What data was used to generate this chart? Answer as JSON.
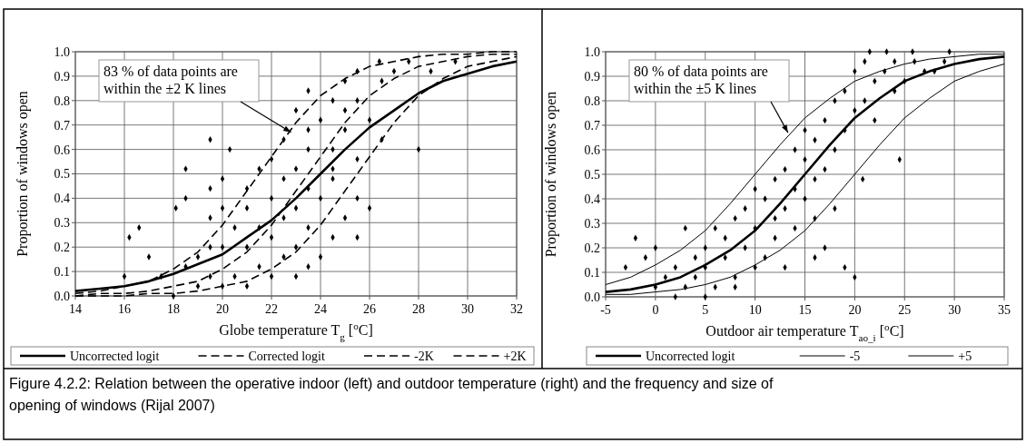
{
  "chart_data": [
    {
      "type": "line",
      "xlabel": "Globe temperature T$_{g}$ [$^{o}$C]",
      "ylabel": "Proportion of windows open",
      "xlim": [
        14,
        32
      ],
      "xticks": [
        14,
        16,
        18,
        20,
        22,
        24,
        26,
        28,
        30,
        32
      ],
      "ylim": [
        0,
        1
      ],
      "yticks": [
        {
          "value": 0,
          "label": "0.0"
        },
        {
          "value": 0.1,
          "label": "0.1"
        },
        {
          "value": 0.2,
          "label": "0.2"
        },
        {
          "value": 0.3,
          "label": "0.3"
        },
        {
          "value": 0.4,
          "label": "0.4"
        },
        {
          "value": 0.5,
          "label": "0.5"
        },
        {
          "value": 0.6,
          "label": "0.6"
        },
        {
          "value": 0.7,
          "label": "0.7"
        },
        {
          "value": 0.8,
          "label": "0.8"
        },
        {
          "value": 0.9,
          "label": "0.9"
        },
        {
          "value": 1,
          "label": "1.0"
        }
      ],
      "grid": true,
      "legend": "bottom",
      "annotations": [
        {
          "text": "83 % of data points are within the ±2 K lines",
          "x": 22.8,
          "y": 0.67
        },
        "Figure 4.2.2: Relation between the operative indoor (left) and outdoor temperature (right) and the frequency and size of opening of windows (Rijal 2007)"
      ],
      "series": [
        {
          "type": "scatter",
          "color": "#000000",
          "marker": "diamond",
          "x": [
            18,
            19,
            19.5,
            20,
            20.5,
            21,
            21.5,
            22,
            22.5,
            23,
            23.5,
            24,
            18.5,
            17.5,
            16,
            19,
            19.5,
            20,
            21,
            22,
            23,
            24.5,
            25.5,
            20.5,
            21.5,
            22.5,
            23.5,
            25,
            26,
            19.5,
            20,
            21,
            22,
            23,
            24,
            25.5,
            18.5,
            19.5,
            21,
            22.5,
            23.5,
            24.5,
            20,
            21.5,
            23,
            24.5,
            25.5,
            22,
            23.5,
            24.5,
            28,
            22.5,
            23.5,
            25,
            26.5,
            24,
            25,
            23,
            24.5,
            25.5,
            23.5,
            25,
            26.5,
            25.5,
            26.4,
            27.6,
            27,
            28.5,
            29.5,
            16.2,
            16.6,
            18.1,
            18.5,
            19.5,
            20.3,
            17,
            26
          ],
          "values": [
            0,
            0.04,
            0.08,
            0.04,
            0.08,
            0.04,
            0.12,
            0.08,
            0.16,
            0.08,
            0.12,
            0.16,
            0.12,
            0.08,
            0.08,
            0.16,
            0.2,
            0.2,
            0.2,
            0.24,
            0.2,
            0.24,
            0.24,
            0.28,
            0.28,
            0.32,
            0.28,
            0.32,
            0.36,
            0.32,
            0.36,
            0.36,
            0.4,
            0.36,
            0.4,
            0.4,
            0.4,
            0.44,
            0.44,
            0.48,
            0.44,
            0.48,
            0.48,
            0.52,
            0.52,
            0.52,
            0.56,
            0.56,
            0.6,
            0.6,
            0.6,
            0.64,
            0.68,
            0.68,
            0.64,
            0.72,
            0.76,
            0.76,
            0.8,
            0.8,
            0.84,
            0.88,
            0.88,
            0.92,
            0.96,
            0.96,
            0.92,
            0.92,
            0.96,
            0.24,
            0.28,
            0.36,
            0.52,
            0.64,
            0.6,
            0.16,
            0.72
          ]
        },
        {
          "name": "Uncorrected logit",
          "color": "#000000",
          "line_style": "solid",
          "x": [
            14,
            15,
            16,
            17,
            18,
            19,
            20,
            21,
            22,
            23,
            24,
            25,
            26,
            27,
            28,
            29,
            30,
            31,
            32
          ],
          "values": [
            0.02,
            0.03,
            0.04,
            0.06,
            0.09,
            0.13,
            0.17,
            0.24,
            0.31,
            0.4,
            0.5,
            0.6,
            0.69,
            0.76,
            0.83,
            0.88,
            0.91,
            0.94,
            0.96
          ]
        },
        {
          "name": "Corrected logit",
          "color": "#000000",
          "line_style": "dashed",
          "x": [
            14,
            15,
            16,
            17,
            18,
            19,
            20,
            21,
            22,
            23,
            24,
            25,
            26,
            27,
            28,
            29,
            30,
            31,
            32
          ],
          "values": [
            0,
            0.01,
            0.01,
            0.02,
            0.04,
            0.06,
            0.11,
            0.18,
            0.29,
            0.43,
            0.57,
            0.71,
            0.82,
            0.89,
            0.94,
            0.96,
            0.98,
            0.99,
            0.99
          ]
        },
        {
          "name": "-2K",
          "color": "#000000",
          "line_style": "dashed",
          "x": [
            14,
            15,
            16,
            17,
            18,
            19,
            20,
            21,
            22,
            23,
            24,
            25,
            26,
            27,
            28,
            29,
            30,
            31,
            32
          ],
          "values": [
            0.01,
            0.02,
            0.04,
            0.06,
            0.11,
            0.18,
            0.29,
            0.43,
            0.57,
            0.71,
            0.82,
            0.89,
            0.94,
            0.96,
            0.98,
            0.99,
            0.99,
            1,
            1
          ]
        },
        {
          "name": "+2K",
          "color": "#000000",
          "line_style": "dashed",
          "x": [
            14,
            15,
            16,
            17,
            18,
            19,
            20,
            21,
            22,
            23,
            24,
            25,
            26,
            27,
            28,
            29,
            30,
            31,
            32
          ],
          "values": [
            0,
            0,
            0,
            0.01,
            0.01,
            0.02,
            0.04,
            0.06,
            0.11,
            0.18,
            0.29,
            0.43,
            0.57,
            0.71,
            0.82,
            0.89,
            0.94,
            0.96,
            0.98
          ]
        }
      ]
    },
    {
      "type": "line",
      "xlabel": "Outdoor air temperature T$_{ao_i}$ [$^{o}$C]",
      "ylabel": "Proportion of windows open",
      "xlim": [
        -5,
        35
      ],
      "xticks": [
        -5,
        0,
        5,
        10,
        15,
        20,
        25,
        30,
        35
      ],
      "ylim": [
        0,
        1
      ],
      "yticks": [
        {
          "value": 0,
          "label": "0.0"
        },
        {
          "value": 0.1,
          "label": "0.1"
        },
        {
          "value": 0.2,
          "label": "0.2"
        },
        {
          "value": 0.3,
          "label": "0.3"
        },
        {
          "value": 0.4,
          "label": "0.4"
        },
        {
          "value": 0.5,
          "label": "0.5"
        },
        {
          "value": 0.6,
          "label": "0.6"
        },
        {
          "value": 0.7,
          "label": "0.7"
        },
        {
          "value": 0.8,
          "label": "0.8"
        },
        {
          "value": 0.9,
          "label": "0.9"
        },
        {
          "value": 1,
          "label": "1.0"
        }
      ],
      "grid": true,
      "legend": "bottom",
      "annotations": [
        {
          "text": "80 % of data points are within the ±5 K lines",
          "x": 13.3,
          "y": 0.67
        }
      ],
      "series": [
        {
          "type": "scatter",
          "color": "#000000",
          "marker": "diamond",
          "x": [
            -3,
            -2,
            -1,
            0,
            0,
            1,
            2,
            2,
            3,
            3,
            4,
            4,
            5,
            5,
            5,
            6,
            6,
            7,
            7,
            8,
            8,
            9,
            9,
            10,
            10,
            10,
            11,
            11,
            12,
            12,
            12,
            13,
            13,
            14,
            14,
            14,
            15,
            15,
            15,
            16,
            16,
            16,
            17,
            17,
            17,
            18,
            18,
            18,
            19,
            19,
            19,
            20,
            20,
            20,
            21,
            21,
            21.5,
            22,
            22,
            23,
            23.2,
            24,
            24,
            24.5,
            25,
            25.8,
            26,
            27,
            28,
            29,
            29.5,
            20.8,
            13,
            8,
            16
          ],
          "values": [
            0.12,
            0.24,
            0.16,
            0.2,
            0.04,
            0.08,
            0,
            0.12,
            0.28,
            0.04,
            0.16,
            0.08,
            0.2,
            0.12,
            0,
            0.28,
            0.04,
            0.24,
            0.16,
            0.32,
            0.08,
            0.36,
            0.2,
            0.28,
            0.12,
            0.44,
            0.4,
            0.16,
            0.32,
            0.48,
            0.24,
            0.36,
            0.52,
            0.44,
            0.6,
            0.28,
            0.4,
            0.56,
            0.68,
            0.48,
            0.64,
            0.32,
            0.52,
            0.72,
            0.2,
            0.6,
            0.8,
            0.36,
            0.68,
            0.84,
            0.12,
            0.76,
            0.92,
            0.08,
            0.8,
            0.96,
            1,
            0.88,
            0.72,
            0.92,
            1,
            0.96,
            0.84,
            0.56,
            0.88,
            1,
            0.96,
            0.92,
            0.92,
            0.96,
            1,
            0.48,
            0.12,
            0.04,
            0.16
          ]
        },
        {
          "name": "Uncorrected logit",
          "color": "#000000",
          "line_style": "solid",
          "x": [
            -5,
            -2.5,
            0,
            2.5,
            5,
            7.5,
            10,
            12.5,
            15,
            17.5,
            20,
            22.5,
            25,
            27.5,
            30,
            32.5,
            35
          ],
          "values": [
            0.02,
            0.03,
            0.05,
            0.08,
            0.13,
            0.19,
            0.27,
            0.38,
            0.5,
            0.62,
            0.73,
            0.81,
            0.88,
            0.92,
            0.95,
            0.97,
            0.98
          ]
        },
        {
          "name": "-5",
          "color": "#000000",
          "line_style": "solid",
          "x": [
            -5,
            -2.5,
            0,
            2.5,
            5,
            7.5,
            10,
            12.5,
            15,
            17.5,
            20,
            22.5,
            25,
            27.5,
            30,
            32.5,
            35
          ],
          "values": [
            0.05,
            0.08,
            0.13,
            0.19,
            0.27,
            0.38,
            0.5,
            0.62,
            0.73,
            0.81,
            0.88,
            0.92,
            0.95,
            0.97,
            0.98,
            0.99,
            0.99
          ]
        },
        {
          "name": "+5",
          "color": "#000000",
          "line_style": "solid",
          "x": [
            -5,
            -2.5,
            0,
            2.5,
            5,
            7.5,
            10,
            12.5,
            15,
            17.5,
            20,
            22.5,
            25,
            27.5,
            30,
            32.5,
            35
          ],
          "values": [
            0.01,
            0.01,
            0.02,
            0.03,
            0.05,
            0.08,
            0.13,
            0.19,
            0.27,
            0.38,
            0.5,
            0.62,
            0.73,
            0.81,
            0.88,
            0.92,
            0.95
          ]
        }
      ]
    }
  ]
}
